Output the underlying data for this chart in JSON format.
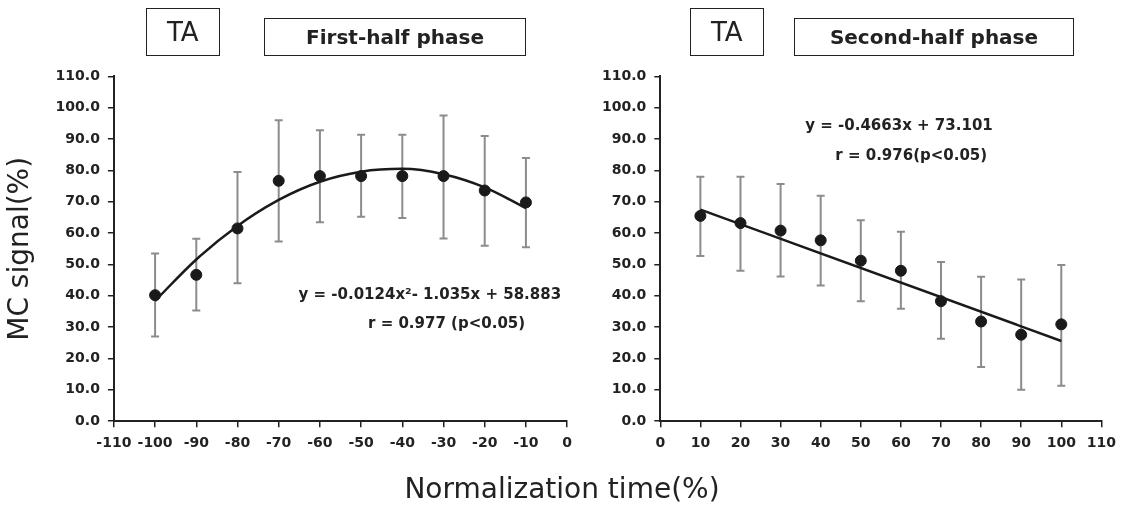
{
  "chart_data": [
    {
      "type": "scatter",
      "title": "First-half phase",
      "subtitle": "TA",
      "ylabel": "MC signal(%)",
      "xlabel": "Normalization time(%)",
      "xlim": [
        -110,
        0
      ],
      "xticks": [
        -110,
        -100,
        -90,
        -80,
        -70,
        -60,
        -50,
        -40,
        -30,
        -20,
        -10,
        0
      ],
      "ylim": [
        0,
        110
      ],
      "yticks": [
        {
          "value": 0,
          "label": "0.0"
        },
        {
          "value": 10,
          "label": "10.0"
        },
        {
          "value": 20,
          "label": "20.0"
        },
        {
          "value": 30,
          "label": "30.0"
        },
        {
          "value": 40,
          "label": "40.0"
        },
        {
          "value": 50,
          "label": "50.0"
        },
        {
          "value": 60,
          "label": "60.0"
        },
        {
          "value": 70,
          "label": "70.0"
        },
        {
          "value": 80,
          "label": "80.0"
        },
        {
          "value": 90,
          "label": "90.0"
        },
        {
          "value": 100,
          "label": "100.0"
        },
        {
          "value": 110,
          "label": "110.0"
        }
      ],
      "marker": "circle",
      "legend": false,
      "series": [
        {
          "color": "#1a1a1a",
          "x": [
            -100,
            -90,
            -80,
            -70,
            -60,
            -50,
            -40,
            -30,
            -20,
            -10
          ],
          "values": [
            40.2,
            46.7,
            61.5,
            76.7,
            78.2,
            78.2,
            78.2,
            78.2,
            73.6,
            69.8
          ],
          "errors": [
            [
              27,
              53.5
            ],
            [
              35.3,
              58.2
            ],
            [
              44,
              79.5
            ],
            [
              57.3,
              96
            ],
            [
              63.5,
              92.8
            ],
            [
              65.2,
              91.4
            ],
            [
              64.8,
              91.4
            ],
            [
              58.3,
              97.5
            ],
            [
              56,
              91
            ],
            [
              55.5,
              84
            ]
          ]
        },
        {
          "type": "line",
          "marker": "none",
          "color": "#1a1a1a",
          "x": [
            -100,
            -90,
            -80,
            -70,
            -60,
            -50,
            -40,
            -30,
            -20,
            -10
          ],
          "values": [
            38.4,
            51.6,
            62.3,
            70.6,
            76.4,
            79.6,
            80.5,
            78.8,
            74.6,
            68.0
          ]
        }
      ],
      "annotations": [
        "y = -0.0124x²- 1.035x + 58.883",
        "r = 0.977 (p<0.05)"
      ]
    },
    {
      "type": "scatter",
      "title": "Second-half phase",
      "subtitle": "TA",
      "xlim": [
        0,
        110
      ],
      "xticks": [
        0,
        10,
        20,
        30,
        40,
        50,
        60,
        70,
        80,
        90,
        100,
        110
      ],
      "ylim": [
        0,
        110
      ],
      "yticks": [
        {
          "value": 0,
          "label": "0.0"
        },
        {
          "value": 10,
          "label": "10.0"
        },
        {
          "value": 20,
          "label": "20.0"
        },
        {
          "value": 30,
          "label": "30.0"
        },
        {
          "value": 40,
          "label": "40.0"
        },
        {
          "value": 50,
          "label": "50.0"
        },
        {
          "value": 60,
          "label": "60.0"
        },
        {
          "value": 70,
          "label": "70.0"
        },
        {
          "value": 80,
          "label": "80.0"
        },
        {
          "value": 90,
          "label": "90.0"
        },
        {
          "value": 100,
          "label": "100.0"
        },
        {
          "value": 110,
          "label": "110.0"
        }
      ],
      "marker": "circle",
      "legend": false,
      "series": [
        {
          "color": "#1a1a1a",
          "x": [
            10,
            20,
            30,
            40,
            50,
            60,
            70,
            80,
            90,
            100
          ],
          "values": [
            65.5,
            63.2,
            60.8,
            57.7,
            51.2,
            48.0,
            38.3,
            31.8,
            27.6,
            30.9
          ],
          "errors": [
            [
              52.7,
              78
            ],
            [
              48,
              78
            ],
            [
              46.2,
              75.7
            ],
            [
              43.3,
              71.9
            ],
            [
              38.3,
              64.1
            ],
            [
              35.9,
              60.4
            ],
            [
              26.3,
              50.8
            ],
            [
              17.3,
              46.1
            ],
            [
              10,
              45.2
            ],
            [
              11.3,
              49.8
            ]
          ]
        },
        {
          "type": "line",
          "marker": "none",
          "color": "#1a1a1a",
          "x": [
            10,
            100
          ],
          "values": [
            67.5,
            25.6
          ]
        }
      ],
      "annotations": [
        "y = -0.4663x + 73.101",
        "r = 0.976(p<0.05)"
      ]
    }
  ]
}
